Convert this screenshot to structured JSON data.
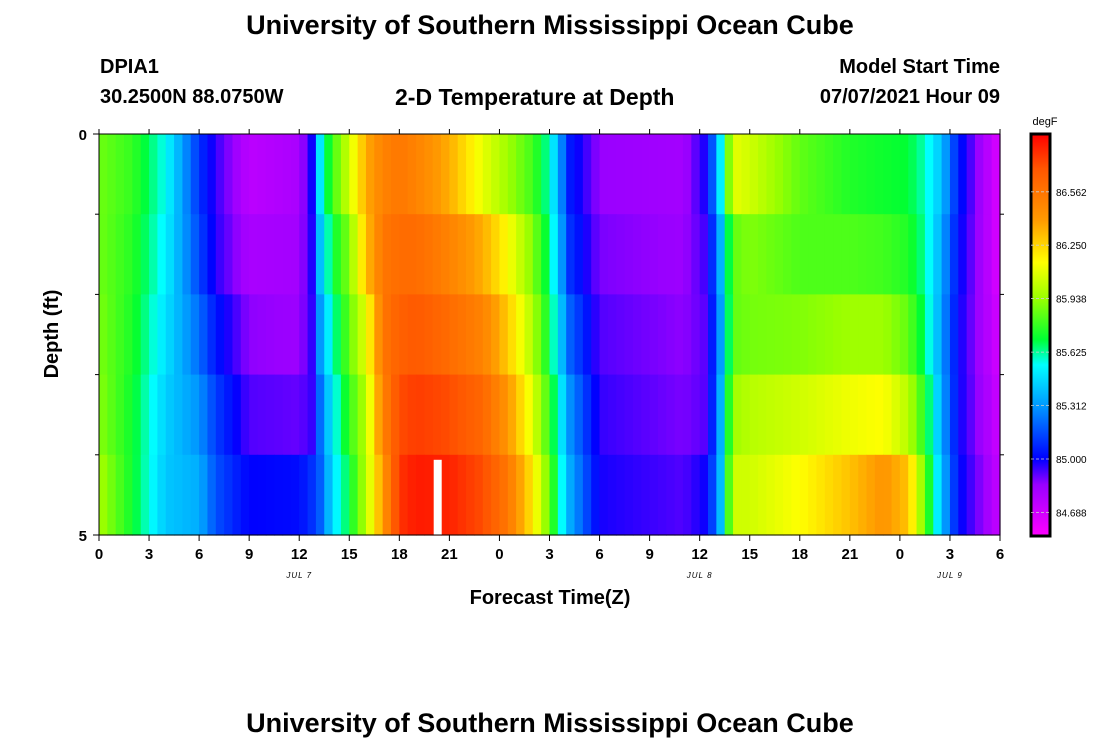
{
  "header": {
    "title": "University of Southern Mississippi Ocean Cube",
    "station": "DPIA1",
    "coords": "30.2500N  88.0750W",
    "subtitle": "2-D Temperature at Depth",
    "model_start_label": "Model Start Time",
    "model_start_value": "07/07/2021 Hour 09"
  },
  "footer": {
    "title": "University of Southern Mississippi Ocean Cube"
  },
  "chart_data": {
    "type": "heatmap",
    "title": "2-D Temperature at Depth",
    "xlabel": "Forecast Time(Z)",
    "ylabel": "Depth (ft)",
    "x_ticks": [
      "0",
      "3",
      "6",
      "9",
      "12",
      "15",
      "18",
      "21",
      "0",
      "3",
      "6",
      "9",
      "12",
      "15",
      "18",
      "21",
      "0",
      "3",
      "6"
    ],
    "x_tick_hours": [
      0,
      3,
      6,
      9,
      12,
      15,
      18,
      21,
      24,
      27,
      30,
      33,
      36,
      39,
      42,
      45,
      48,
      51,
      54
    ],
    "xlim": [
      0,
      54
    ],
    "date_labels": [
      {
        "text": "JUL 7",
        "hour": 12
      },
      {
        "text": "JUL 8",
        "hour": 36
      },
      {
        "text": "JUL 9",
        "hour": 51
      }
    ],
    "y_ticks": [
      "0",
      "5"
    ],
    "ylim": [
      0,
      5
    ],
    "y_minor_ticks": [
      1,
      2,
      3,
      4
    ],
    "depth_rows": [
      0,
      1,
      2,
      3,
      4
    ],
    "colorbar": {
      "unit": "degF",
      "labels": [
        "86.562",
        "86.250",
        "85.938",
        "85.625",
        "85.312",
        "85.000",
        "84.688"
      ],
      "label_values": [
        86.562,
        86.25,
        85.938,
        85.625,
        85.312,
        85.0,
        84.688
      ],
      "range": [
        84.55,
        86.9
      ]
    },
    "color_stops": [
      {
        "v": 84.55,
        "c": "#ff00ff"
      },
      {
        "v": 84.85,
        "c": "#9900ff"
      },
      {
        "v": 85.0,
        "c": "#0000ff"
      },
      {
        "v": 85.312,
        "c": "#0099ff"
      },
      {
        "v": 85.55,
        "c": "#00ffff"
      },
      {
        "v": 85.7,
        "c": "#00ff33"
      },
      {
        "v": 85.938,
        "c": "#99ff00"
      },
      {
        "v": 86.15,
        "c": "#ffff00"
      },
      {
        "v": 86.4,
        "c": "#ff9900"
      },
      {
        "v": 86.7,
        "c": "#ff5500"
      },
      {
        "v": 86.9,
        "c": "#ff0000"
      }
    ],
    "temperature_keyframes": [
      {
        "h": 0,
        "t": [
          85.87,
          85.87,
          85.89,
          85.91,
          85.97
        ]
      },
      {
        "h": 2,
        "t": [
          85.78,
          85.76,
          85.74,
          85.72,
          85.72
        ]
      },
      {
        "h": 4,
        "t": [
          85.55,
          85.52,
          85.48,
          85.44,
          85.42
        ]
      },
      {
        "h": 6,
        "t": [
          85.1,
          85.14,
          85.22,
          85.3,
          85.36
        ]
      },
      {
        "h": 7,
        "t": [
          84.95,
          84.96,
          85.04,
          85.12,
          85.16
        ]
      },
      {
        "h": 9,
        "t": [
          84.75,
          84.8,
          84.86,
          84.92,
          85.0
        ]
      },
      {
        "h": 12,
        "t": [
          84.8,
          84.82,
          84.84,
          84.9,
          85.02
        ]
      },
      {
        "h": 12.8,
        "t": [
          85.0,
          84.98,
          84.96,
          84.95,
          85.1
        ]
      },
      {
        "h": 13.3,
        "t": [
          85.55,
          85.45,
          85.35,
          85.25,
          85.2
        ]
      },
      {
        "h": 14,
        "t": [
          85.8,
          85.7,
          85.6,
          85.52,
          85.48
        ]
      },
      {
        "h": 15,
        "t": [
          86.05,
          85.9,
          85.85,
          85.78,
          85.7
        ]
      },
      {
        "h": 16,
        "t": [
          86.35,
          86.3,
          86.1,
          86.0,
          86.0
        ]
      },
      {
        "h": 17,
        "t": [
          86.5,
          86.55,
          86.55,
          86.5,
          86.4
        ]
      },
      {
        "h": 18,
        "t": [
          86.55,
          86.6,
          86.65,
          86.72,
          86.78
        ]
      },
      {
        "h": 19,
        "t": [
          86.5,
          86.6,
          86.68,
          86.76,
          86.84
        ]
      },
      {
        "h": 21,
        "t": [
          86.35,
          86.5,
          86.6,
          86.72,
          86.82
        ]
      },
      {
        "h": 23,
        "t": [
          86.1,
          86.35,
          86.5,
          86.62,
          86.72
        ]
      },
      {
        "h": 24.5,
        "t": [
          85.95,
          86.15,
          86.28,
          86.42,
          86.55
        ]
      },
      {
        "h": 26,
        "t": [
          85.8,
          85.9,
          85.98,
          86.08,
          86.2
        ]
      },
      {
        "h": 27,
        "t": [
          85.6,
          85.65,
          85.7,
          85.78,
          85.85
        ]
      },
      {
        "h": 28.2,
        "t": [
          85.05,
          85.1,
          85.2,
          85.3,
          85.36
        ]
      },
      {
        "h": 30,
        "t": [
          84.85,
          84.88,
          84.92,
          84.95,
          84.98
        ]
      },
      {
        "h": 35,
        "t": [
          84.82,
          84.84,
          84.86,
          84.88,
          84.92
        ]
      },
      {
        "h": 36.5,
        "t": [
          85.0,
          84.95,
          84.92,
          84.92,
          85.0
        ]
      },
      {
        "h": 37.3,
        "t": [
          85.55,
          85.4,
          85.35,
          85.4,
          85.42
        ]
      },
      {
        "h": 38,
        "t": [
          86.1,
          85.85,
          85.85,
          85.95,
          86.05
        ]
      },
      {
        "h": 39,
        "t": [
          86.05,
          85.9,
          85.88,
          86.0,
          86.05
        ]
      },
      {
        "h": 42,
        "t": [
          85.85,
          85.82,
          85.9,
          86.05,
          86.15
        ]
      },
      {
        "h": 45,
        "t": [
          85.75,
          85.82,
          85.95,
          86.12,
          86.3
        ]
      },
      {
        "h": 47,
        "t": [
          85.72,
          85.8,
          85.95,
          86.15,
          86.42
        ]
      },
      {
        "h": 48.5,
        "t": [
          85.7,
          85.75,
          85.85,
          86.0,
          86.3
        ]
      },
      {
        "h": 49.5,
        "t": [
          85.6,
          85.62,
          85.65,
          85.75,
          85.85
        ]
      },
      {
        "h": 50.5,
        "t": [
          85.4,
          85.35,
          85.32,
          85.35,
          85.4
        ]
      },
      {
        "h": 51.5,
        "t": [
          85.05,
          85.02,
          85.0,
          85.0,
          85.02
        ]
      },
      {
        "h": 53,
        "t": [
          84.8,
          84.8,
          84.8,
          84.82,
          84.85
        ]
      },
      {
        "h": 54,
        "t": [
          84.65,
          84.65,
          84.68,
          84.7,
          84.72
        ]
      }
    ],
    "gap_marker": {
      "hour": 20,
      "depth_from": 4,
      "depth_to": 5,
      "color": "#ffffff"
    }
  }
}
